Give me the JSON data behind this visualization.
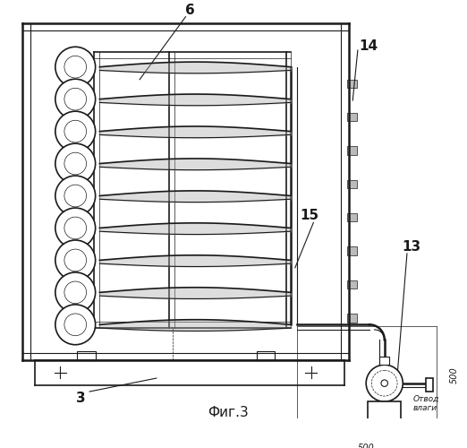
{
  "fig_label": "Фиг.3",
  "label_6": "6",
  "label_14": "14",
  "label_15": "15",
  "label_13": "13",
  "label_3": "3",
  "dim_500_horiz": "500",
  "dim_500_vert": "500",
  "otv_vlagi": "Отвод\nвлаги",
  "line_color": "#1a1a1a",
  "bg_color": "#ffffff"
}
